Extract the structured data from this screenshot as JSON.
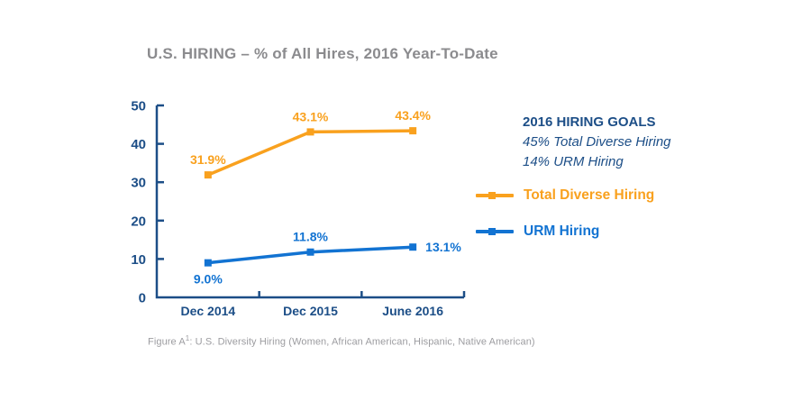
{
  "title": "U.S. HIRING – % of All Hires, 2016 Year-To-Date",
  "colors": {
    "orange": "#F9A11E",
    "blue": "#1273D2",
    "navy": "#1C4E87",
    "title_gray": "#8B8B8E",
    "footer_gray": "#9C9CA0"
  },
  "chart_data": {
    "type": "line",
    "categories": [
      "Dec 2014",
      "Dec 2015",
      "June 2016"
    ],
    "series": [
      {
        "name": "Total Diverse Hiring",
        "color_key": "orange",
        "values": [
          31.9,
          43.1,
          43.4
        ],
        "point_labels": [
          "31.9%",
          "43.1%",
          "43.4%"
        ],
        "label_positions": [
          "above",
          "above",
          "above"
        ]
      },
      {
        "name": "URM Hiring",
        "color_key": "blue",
        "values": [
          9.0,
          11.8,
          13.1
        ],
        "point_labels": [
          "9.0%",
          "11.8%",
          "13.1%"
        ],
        "label_positions": [
          "below",
          "above",
          "right"
        ]
      }
    ],
    "ylim": [
      0,
      50
    ],
    "yticks": [
      0,
      10,
      20,
      30,
      40,
      50
    ],
    "grid": false,
    "legend_position": "right",
    "marker": "square"
  },
  "goals": {
    "heading": "2016 HIRING GOALS",
    "lines": [
      "45% Total Diverse Hiring",
      "14% URM Hiring"
    ]
  },
  "legend": {
    "items": [
      {
        "label": "Total Diverse Hiring",
        "color_key": "orange"
      },
      {
        "label": "URM Hiring",
        "color_key": "blue"
      }
    ]
  },
  "footer": {
    "prefix": "Figure A",
    "superscript": "1",
    "text": ": U.S. Diversity Hiring (Women, African American, Hispanic, Native American)"
  }
}
